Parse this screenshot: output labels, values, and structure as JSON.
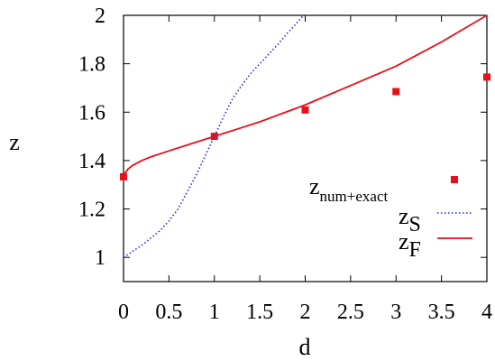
{
  "chart_data": {
    "type": "line",
    "title": "",
    "xlabel": "d",
    "ylabel": "z",
    "xlim": [
      0,
      4
    ],
    "ylim": [
      0.9,
      2.0
    ],
    "xticks": [
      "0",
      "0.5",
      "1",
      "1.5",
      "2",
      "2.5",
      "3",
      "3.5",
      "4"
    ],
    "xtick_values": [
      0,
      0.5,
      1,
      1.5,
      2,
      2.5,
      3,
      3.5,
      4
    ],
    "yticks": [
      "1",
      "1.2",
      "1.4",
      "1.6",
      "1.8",
      "2"
    ],
    "ytick_values": [
      1,
      1.2,
      1.4,
      1.6,
      1.8,
      2
    ],
    "grid": false,
    "legend_position": "bottom-right",
    "series": [
      {
        "key": "num_exact",
        "name_main": "z",
        "name_sub": "num+exact",
        "style": "points",
        "color": "#e8101a",
        "x": [
          0,
          1,
          2,
          3,
          4
        ],
        "y": [
          1.333,
          1.5,
          1.609,
          1.685,
          1.745
        ]
      },
      {
        "key": "zS",
        "name_main": "z",
        "name_sub": "S",
        "style": "dotted",
        "color": "#1f2de0",
        "x": [
          0,
          0.1,
          0.2,
          0.3,
          0.4,
          0.5,
          0.6,
          0.7,
          0.8,
          0.9,
          1.0,
          1.1,
          1.2,
          1.3,
          1.4,
          1.5,
          1.6,
          1.7,
          1.8,
          1.9,
          1.98
        ],
        "y": [
          1.0,
          1.025,
          1.05,
          1.08,
          1.11,
          1.15,
          1.2,
          1.27,
          1.34,
          1.42,
          1.5,
          1.58,
          1.655,
          1.71,
          1.76,
          1.8,
          1.84,
          1.88,
          1.925,
          1.965,
          2.0
        ]
      },
      {
        "key": "zF",
        "name_main": "z",
        "name_sub": "F",
        "style": "solid",
        "color": "#e8101a",
        "x": [
          0,
          0.02,
          0.05,
          0.1,
          0.2,
          0.3,
          0.5,
          0.75,
          1.0,
          1.25,
          1.5,
          1.75,
          2.0,
          2.25,
          2.5,
          2.75,
          3.0,
          3.25,
          3.5,
          3.75,
          4.0
        ],
        "y": [
          1.333,
          1.35,
          1.365,
          1.38,
          1.4,
          1.415,
          1.44,
          1.47,
          1.5,
          1.53,
          1.56,
          1.595,
          1.63,
          1.67,
          1.71,
          1.75,
          1.79,
          1.84,
          1.89,
          1.945,
          2.0
        ]
      }
    ]
  }
}
